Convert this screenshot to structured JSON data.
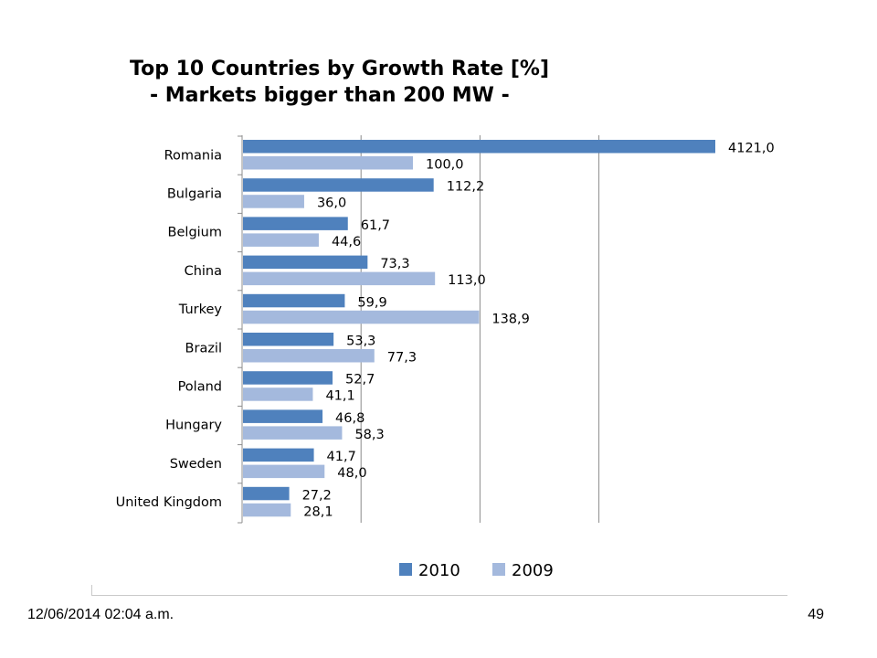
{
  "slide": {
    "footer_date": "12/06/2014 02:04 a.m.",
    "page_number": "49"
  },
  "chart_data": {
    "type": "bar",
    "orientation": "horizontal",
    "title_lines": [
      "Top 10 Countries by Growth Rate [%]",
      "- Markets bigger than 200 MW -"
    ],
    "categories": [
      "Romania",
      "Bulgaria",
      "Belgium",
      "China",
      "Turkey",
      "Brazil",
      "Poland",
      "Hungary",
      "Sweden",
      "United Kingdom"
    ],
    "series": [
      {
        "name": "2010",
        "color": "#4f81bd",
        "values": [
          4121.0,
          112.2,
          61.7,
          73.3,
          59.9,
          53.3,
          52.7,
          46.8,
          41.7,
          27.2
        ],
        "labels": [
          "4121,0",
          "112,2",
          "61,7",
          "73,3",
          "59,9",
          "53,3",
          "52,7",
          "46,8",
          "41,7",
          "27,2"
        ]
      },
      {
        "name": "2009",
        "color": "#a4b9dd",
        "values": [
          100.0,
          36.0,
          44.6,
          113.0,
          138.9,
          77.3,
          41.1,
          58.3,
          48.0,
          28.1
        ],
        "labels": [
          "100,0",
          "36,0",
          "44,6",
          "113,0",
          "138,9",
          "77,3",
          "41,1",
          "58,3",
          "48,0",
          "28,1"
        ]
      }
    ],
    "axis_break_note": "2010 Romania bar truncated at chart edge",
    "grid": true,
    "legend_position": "bottom",
    "xlabel": "",
    "ylabel": ""
  }
}
